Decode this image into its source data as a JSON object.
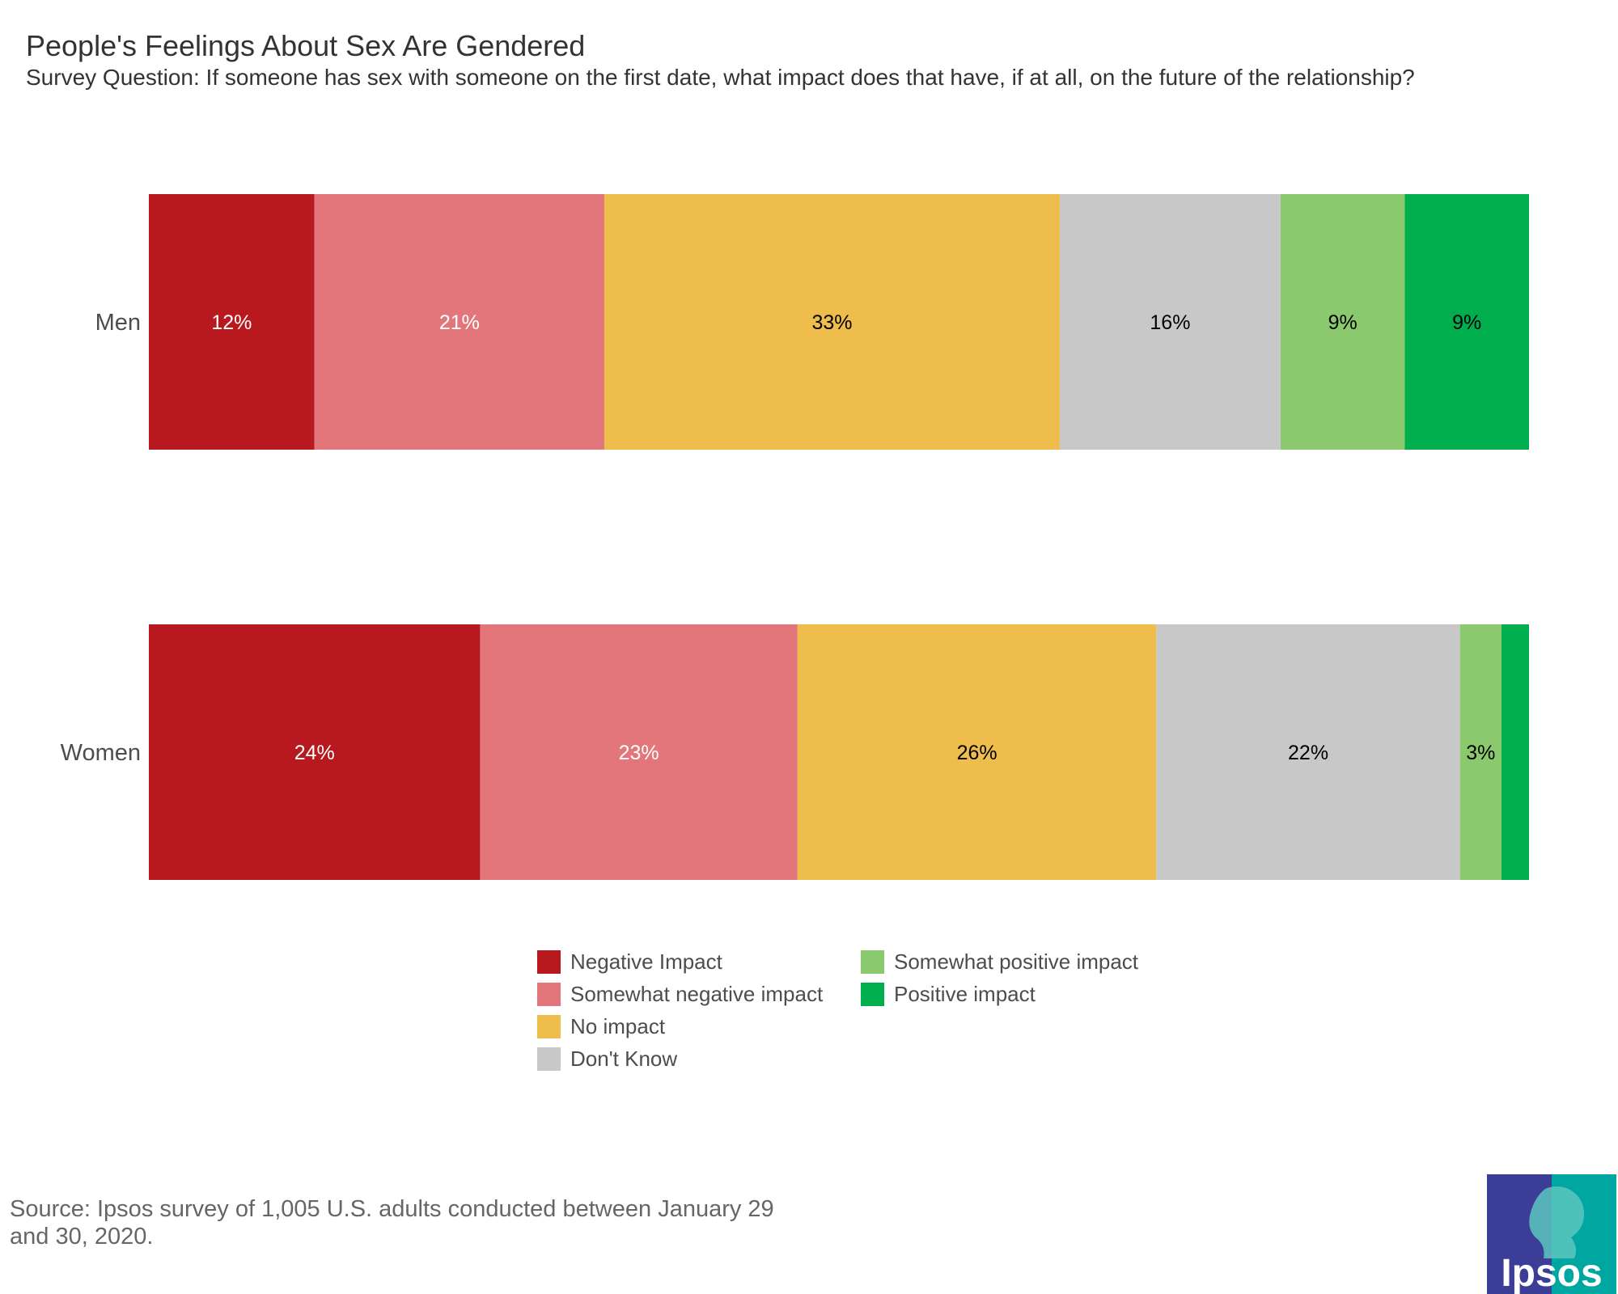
{
  "title": "People's Feelings About Sex Are Gendered",
  "subtitle": "Survey Question: If someone has sex with someone on the first date, what impact does that have, if at all, on the future of the relationship?",
  "chart_data": {
    "type": "bar",
    "orientation": "horizontal",
    "stacked": true,
    "normalized": true,
    "categories": [
      "Men",
      "Women"
    ],
    "series": [
      {
        "name": "Negative Impact",
        "color": "#b7191f",
        "values": [
          12,
          24
        ],
        "labels": [
          "12%",
          "24%"
        ],
        "label_color": "#ffffff"
      },
      {
        "name": "Somewhat negative impact",
        "color": "#e2767a",
        "values": [
          21,
          23
        ],
        "labels": [
          "21%",
          "23%"
        ],
        "label_color": "#ffffff"
      },
      {
        "name": "No impact",
        "color": "#efbd4b",
        "values": [
          33,
          26
        ],
        "labels": [
          "33%",
          "26%"
        ],
        "label_color": "#000000"
      },
      {
        "name": "Don't Know",
        "color": "#c8c8c8",
        "values": [
          16,
          22
        ],
        "labels": [
          "16%",
          "22%"
        ],
        "label_color": "#000000"
      },
      {
        "name": "Somewhat positive impact",
        "color": "#8ac96d",
        "values": [
          9,
          3
        ],
        "labels": [
          "9%",
          "3%"
        ],
        "label_color": "#000000"
      },
      {
        "name": "Positive impact",
        "color": "#00ae4e",
        "values": [
          9,
          2
        ],
        "labels": [
          "9%",
          ""
        ],
        "label_color": "#000000"
      }
    ],
    "xlim": [
      0,
      100
    ],
    "grid": false,
    "legend": "bottom"
  },
  "source": "Source: Ipsos survey of 1,005 U.S. adults conducted between January 29 and 30, 2020.",
  "logo": {
    "text": "Ipsos",
    "colors": [
      "#3c3d96",
      "#00a6a0"
    ]
  }
}
